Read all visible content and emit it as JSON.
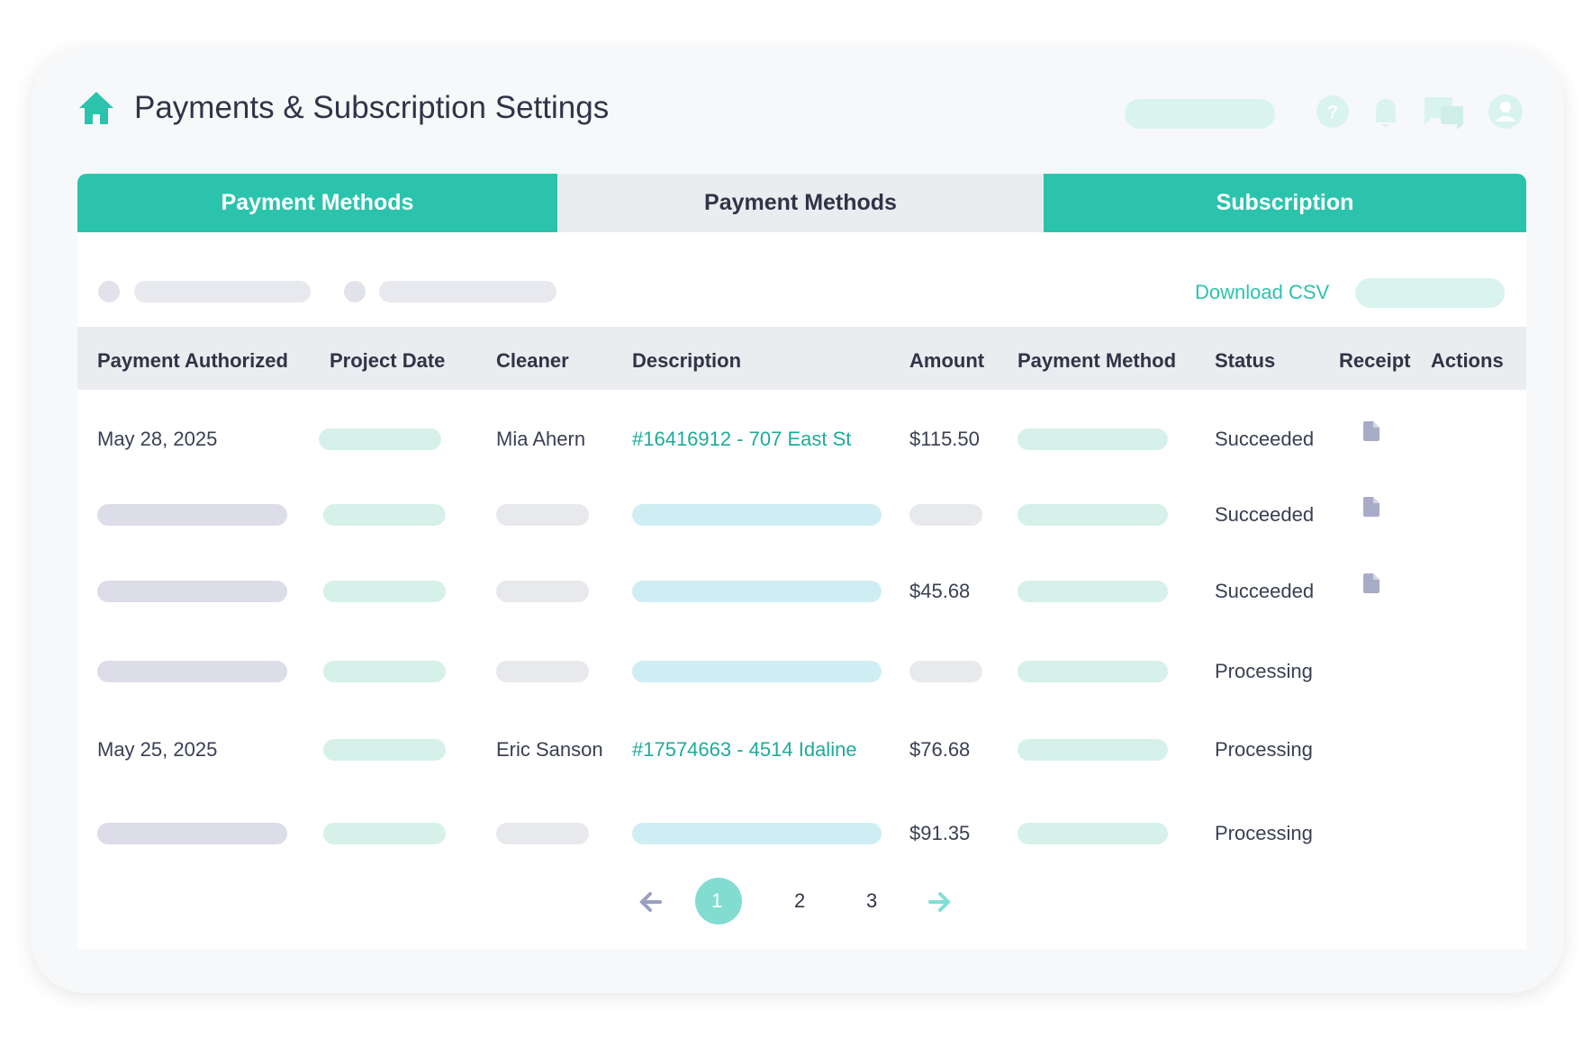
{
  "header": {
    "title": "Payments & Subscription Settings"
  },
  "tabs": [
    "Payment Methods",
    "Payment Methods",
    "Subscription"
  ],
  "toolbar": {
    "download": "Download CSV"
  },
  "table": {
    "columns": [
      "Payment Authorized",
      "Project Date",
      "Cleaner",
      "Description",
      "Amount",
      "Payment Method",
      "Status",
      "Receipt",
      "Actions"
    ],
    "rows": [
      [
        "May 28, 2025",
        null,
        "Mia Ahern",
        "#16416912 - 707 East St",
        "$115.50",
        null,
        "Succeeded",
        null,
        null
      ],
      [
        null,
        null,
        null,
        null,
        null,
        null,
        "Succeeded",
        null,
        null
      ],
      [
        null,
        null,
        null,
        null,
        "$45.68",
        null,
        "Succeeded",
        null,
        null
      ],
      [
        null,
        null,
        null,
        null,
        null,
        null,
        "Processing",
        null,
        null
      ],
      [
        "May 25, 2025",
        null,
        "Eric Sanson",
        "#17574663 - 4514 Idaline",
        "$76.68",
        null,
        "Processing",
        null,
        null
      ],
      [
        null,
        null,
        null,
        null,
        "$91.35",
        null,
        "Processing",
        null,
        null
      ]
    ]
  },
  "pagination": {
    "pages": [
      1,
      2,
      3
    ]
  }
}
